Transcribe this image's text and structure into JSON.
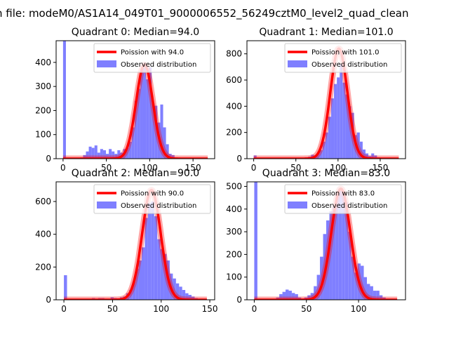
{
  "figure": {
    "suptitle": "n file: modeM0/AS1A14_049T01_9000006552_56249cztM0_level2_quad_clean"
  },
  "colors": {
    "poisson_line": "#ff0000",
    "observed_bars": "#7f7fff",
    "axes": "#000000",
    "background": "#ffffff"
  },
  "chart_data": [
    {
      "type": "bar",
      "title": "Quadrant 0: Median=94.0",
      "xlim": [
        -8,
        175
      ],
      "ylim": [
        0,
        490
      ],
      "xticks": [
        0,
        50,
        100,
        150
      ],
      "yticks": [
        0,
        100,
        200,
        300,
        400
      ],
      "bin_width": 3.3,
      "series": [
        {
          "name": "Observed distribution",
          "x": [
            0,
            3.3,
            6.6,
            9.9,
            13.2,
            16.5,
            19.8,
            23.1,
            26.4,
            29.7,
            33,
            36.3,
            39.6,
            42.9,
            46.2,
            49.5,
            52.8,
            56.1,
            59.4,
            62.7,
            66,
            69.3,
            72.6,
            75.9,
            79.2,
            82.5,
            85.8,
            89.1,
            92.4,
            95.7,
            99,
            102.3,
            105.6,
            108.9,
            112.2,
            115.5,
            118.8,
            122.1,
            125.4,
            128.7,
            132
          ],
          "values": [
            490,
            0,
            0,
            0,
            0,
            0,
            5,
            15,
            30,
            50,
            45,
            55,
            25,
            40,
            35,
            20,
            40,
            30,
            20,
            35,
            25,
            40,
            45,
            70,
            130,
            240,
            290,
            370,
            380,
            330,
            380,
            230,
            220,
            150,
            225,
            130,
            60,
            20,
            15,
            5,
            5
          ]
        },
        {
          "name": "Poission with 94.0",
          "mean": 94.0,
          "peak": 390
        }
      ],
      "legend": [
        "Poission with 94.0",
        "Observed distribution"
      ],
      "legend_loc": "upper right"
    },
    {
      "type": "bar",
      "title": "Quadrant 1: Median=101.0",
      "xlim": [
        -8,
        180
      ],
      "ylim": [
        0,
        900
      ],
      "xticks": [
        0,
        50,
        100,
        150
      ],
      "yticks": [
        0,
        200,
        400,
        600,
        800
      ],
      "bin_width": 3.4,
      "series": [
        {
          "name": "Observed distribution",
          "x": [
            0,
            3.4,
            6.8,
            10.2,
            13.6,
            17,
            20.4,
            23.8,
            27.2,
            30.6,
            34,
            37.4,
            40.8,
            44.2,
            47.6,
            51,
            54.4,
            57.8,
            61.2,
            64.6,
            68,
            71.4,
            74.8,
            78.2,
            81.6,
            85,
            88.4,
            91.8,
            95.2,
            98.6,
            102,
            105.4,
            108.8,
            112.2,
            115.6,
            119,
            122.4,
            125.8,
            129.2,
            132.6,
            136,
            139.4,
            142.8,
            146.2
          ],
          "values": [
            25,
            0,
            0,
            0,
            0,
            0,
            0,
            0,
            0,
            0,
            0,
            0,
            0,
            0,
            0,
            0,
            0,
            5,
            10,
            15,
            30,
            25,
            45,
            65,
            130,
            200,
            320,
            460,
            570,
            620,
            720,
            580,
            490,
            400,
            350,
            180,
            200,
            130,
            70,
            40,
            20,
            40,
            25,
            10
          ]
        },
        {
          "name": "Poission with 101.0",
          "mean": 101.0,
          "peak": 840
        }
      ],
      "legend": [
        "Poission with 101.0",
        "Observed distribution"
      ],
      "legend_loc": "upper right"
    },
    {
      "type": "bar",
      "title": "Quadrant 2: Median=90.0",
      "xlim": [
        -8,
        155
      ],
      "ylim": [
        0,
        720
      ],
      "xticks": [
        0,
        50,
        100,
        150
      ],
      "yticks": [
        0,
        200,
        400,
        600
      ],
      "bin_width": 3.2,
      "series": [
        {
          "name": "Observed distribution",
          "x": [
            0,
            3.2,
            6.4,
            9.6,
            12.8,
            16,
            19.2,
            22.4,
            25.6,
            28.8,
            32,
            35.2,
            38.4,
            41.6,
            44.8,
            48,
            51.2,
            54.4,
            57.6,
            60.8,
            64,
            67.2,
            70.4,
            73.6,
            76.8,
            80,
            83.2,
            86.4,
            89.6,
            92.8,
            96,
            99.2,
            102.4,
            105.6,
            108.8,
            112,
            115.2,
            118.4,
            121.6,
            124.8,
            128,
            131.2,
            134.4,
            137.6
          ],
          "values": [
            150,
            0,
            0,
            0,
            0,
            0,
            0,
            0,
            5,
            10,
            5,
            10,
            10,
            5,
            5,
            15,
            10,
            5,
            15,
            20,
            40,
            60,
            110,
            190,
            240,
            320,
            500,
            590,
            600,
            510,
            370,
            310,
            280,
            240,
            160,
            130,
            100,
            80,
            60,
            40,
            30,
            20,
            10,
            5
          ]
        },
        {
          "name": "Poission with 90.0",
          "mean": 90.0,
          "peak": 670
        }
      ],
      "legend": [
        "Poission with 90.0",
        "Observed distribution"
      ],
      "legend_loc": "upper right"
    },
    {
      "type": "bar",
      "title": "Quadrant 3: Median=83.0",
      "xlim": [
        -7,
        145
      ],
      "ylim": [
        0,
        520
      ],
      "xticks": [
        0,
        50,
        100
      ],
      "yticks": [
        0,
        100,
        200,
        300,
        400,
        500
      ],
      "bin_width": 3.0,
      "series": [
        {
          "name": "Observed distribution",
          "x": [
            0,
            3,
            6,
            9,
            12,
            15,
            18,
            21,
            24,
            27,
            30,
            33,
            36,
            39,
            42,
            45,
            48,
            51,
            54,
            57,
            60,
            63,
            66,
            69,
            72,
            75,
            78,
            81,
            84,
            87,
            90,
            93,
            96,
            99,
            102,
            105,
            108,
            111,
            114,
            117,
            120,
            123
          ],
          "values": [
            520,
            0,
            0,
            0,
            0,
            0,
            0,
            10,
            25,
            35,
            45,
            40,
            30,
            25,
            10,
            5,
            10,
            20,
            30,
            60,
            110,
            190,
            290,
            350,
            390,
            410,
            470,
            480,
            470,
            430,
            300,
            190,
            120,
            160,
            150,
            100,
            70,
            60,
            40,
            40,
            20,
            10
          ]
        },
        {
          "name": "Poission with 83.0",
          "mean": 83.0,
          "peak": 490
        }
      ],
      "legend": [
        "Poission with 83.0",
        "Observed distribution"
      ],
      "legend_loc": "upper right"
    }
  ]
}
